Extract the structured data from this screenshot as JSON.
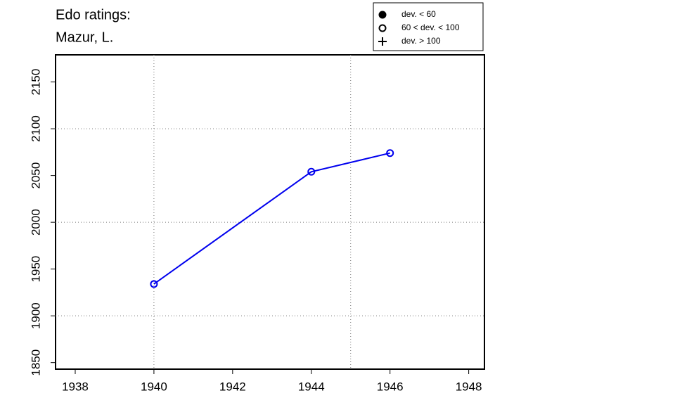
{
  "chart_data": {
    "type": "line",
    "title": [
      "Edo ratings:",
      "Mazur, L."
    ],
    "x": [
      1940,
      1944,
      1946
    ],
    "series": [
      {
        "name": "Mazur, L.",
        "color": "#0000ee",
        "marker": "open-circle",
        "values": [
          1934,
          2054,
          2074
        ]
      }
    ],
    "xlim": [
      1937.5,
      1948.4
    ],
    "ylim": [
      1843,
      2179
    ],
    "xticks": [
      1938,
      1940,
      1942,
      1944,
      1946,
      1948
    ],
    "yticks": [
      1850,
      1900,
      1950,
      2000,
      2050,
      2100,
      2150
    ],
    "grid_x": [
      1940,
      1945
    ],
    "grid_y": [
      1900,
      2000,
      2100
    ],
    "legend": {
      "position": "top-right",
      "entries": [
        {
          "label": "dev. < 60",
          "symbol": "filled-circle"
        },
        {
          "label": "60 < dev. < 100",
          "symbol": "open-circle"
        },
        {
          "label": "dev. > 100",
          "symbol": "plus"
        }
      ]
    }
  }
}
